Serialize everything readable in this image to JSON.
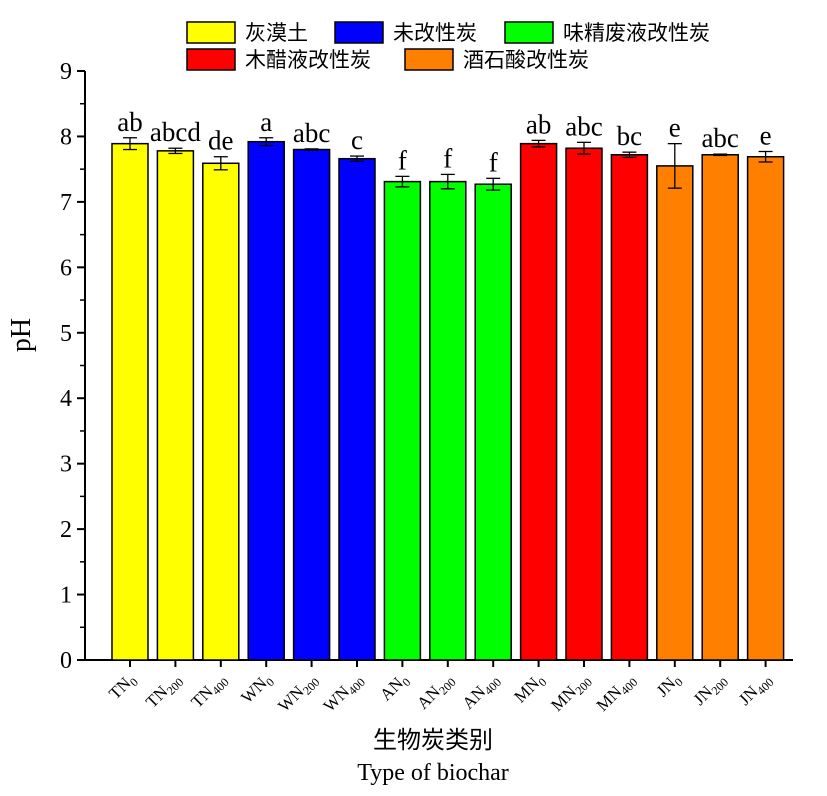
{
  "chart_data": {
    "type": "bar",
    "ylabel": "pH",
    "xlabel_cn": "生物炭类别",
    "xlabel_en": "Type of biochar",
    "ylim": [
      0,
      9
    ],
    "yticks": [
      0,
      1,
      2,
      3,
      4,
      5,
      6,
      7,
      8,
      9
    ],
    "legend": [
      {
        "name": "灰漠土",
        "color": "#ffff00"
      },
      {
        "name": "未改性炭",
        "color": "#0000ff"
      },
      {
        "name": "味精废液改性炭",
        "color": "#00ff00"
      },
      {
        "name": "木醋液改性炭",
        "color": "#ff0000"
      },
      {
        "name": "酒石酸改性炭",
        "color": "#ff8000"
      }
    ],
    "bars": [
      {
        "prefix": "TN",
        "sub": "0",
        "value": 7.89,
        "err": 0.09,
        "sig": "ab",
        "color": "#ffff00"
      },
      {
        "prefix": "TN",
        "sub": "200",
        "value": 7.78,
        "err": 0.04,
        "sig": "abcd",
        "color": "#ffff00"
      },
      {
        "prefix": "TN",
        "sub": "400",
        "value": 7.59,
        "err": 0.1,
        "sig": "de",
        "color": "#ffff00"
      },
      {
        "prefix": "WN",
        "sub": "0",
        "value": 7.92,
        "err": 0.06,
        "sig": "a",
        "color": "#0000ff"
      },
      {
        "prefix": "WN",
        "sub": "200",
        "value": 7.8,
        "err": 0.01,
        "sig": "abc",
        "color": "#0000ff"
      },
      {
        "prefix": "WN",
        "sub": "400",
        "value": 7.66,
        "err": 0.04,
        "sig": "c",
        "color": "#0000ff"
      },
      {
        "prefix": "AN",
        "sub": "0",
        "value": 7.31,
        "err": 0.08,
        "sig": "f",
        "color": "#00ff00"
      },
      {
        "prefix": "AN",
        "sub": "200",
        "value": 7.31,
        "err": 0.11,
        "sig": "f",
        "color": "#00ff00"
      },
      {
        "prefix": "AN",
        "sub": "400",
        "value": 7.27,
        "err": 0.09,
        "sig": "f",
        "color": "#00ff00"
      },
      {
        "prefix": "MN",
        "sub": "0",
        "value": 7.89,
        "err": 0.05,
        "sig": "ab",
        "color": "#ff0000"
      },
      {
        "prefix": "MN",
        "sub": "200",
        "value": 7.82,
        "err": 0.09,
        "sig": "abc",
        "color": "#ff0000"
      },
      {
        "prefix": "MN",
        "sub": "400",
        "value": 7.72,
        "err": 0.04,
        "sig": "bc",
        "color": "#ff0000"
      },
      {
        "prefix": "JN",
        "sub": "0",
        "value": 7.55,
        "err": 0.34,
        "sig": "e",
        "color": "#ff8000"
      },
      {
        "prefix": "JN",
        "sub": "200",
        "value": 7.72,
        "err": 0.01,
        "sig": "abc",
        "color": "#ff8000"
      },
      {
        "prefix": "JN",
        "sub": "400",
        "value": 7.69,
        "err": 0.08,
        "sig": "e",
        "color": "#ff8000"
      }
    ]
  }
}
